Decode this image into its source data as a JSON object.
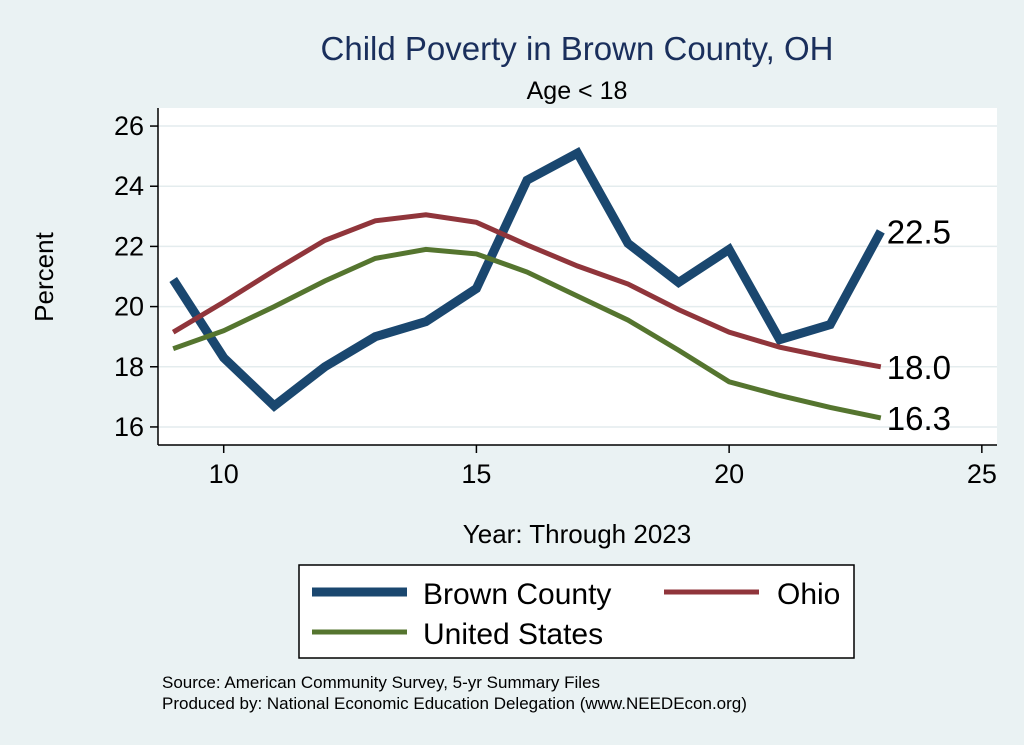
{
  "chart_data": {
    "type": "line",
    "title": "Child Poverty in Brown County, OH",
    "subtitle": "Age < 18",
    "xlabel": "Year: Through 2023",
    "ylabel": "Percent",
    "xlim": [
      8.7,
      25.3
    ],
    "ylim": [
      15.4,
      26.6
    ],
    "xticks": [
      10,
      15,
      20,
      25
    ],
    "yticks": [
      16,
      18,
      20,
      22,
      24,
      26
    ],
    "grid": true,
    "legend_position": "bottom",
    "series": [
      {
        "name": "Brown County",
        "color": "#1a476f",
        "width": 9,
        "x": [
          9,
          10,
          11,
          12,
          13,
          14,
          15,
          16,
          17,
          18,
          19,
          20,
          21,
          22,
          23
        ],
        "values": [
          20.9,
          18.3,
          16.7,
          18.0,
          19.0,
          19.5,
          20.6,
          24.2,
          25.1,
          22.1,
          20.8,
          21.9,
          18.9,
          19.4,
          22.5
        ],
        "end_label": "22.5"
      },
      {
        "name": "Ohio",
        "color": "#90353b",
        "width": 5,
        "x": [
          9,
          10,
          11,
          12,
          13,
          14,
          15,
          16,
          17,
          18,
          19,
          20,
          21,
          22,
          23
        ],
        "values": [
          19.15,
          20.15,
          21.2,
          22.2,
          22.85,
          23.05,
          22.8,
          22.05,
          21.35,
          20.75,
          19.9,
          19.15,
          18.65,
          18.3,
          18.0
        ],
        "end_label": "18.0"
      },
      {
        "name": "United States",
        "color": "#55752f",
        "width": 5,
        "x": [
          9,
          10,
          11,
          12,
          13,
          14,
          15,
          16,
          17,
          18,
          19,
          20,
          21,
          22,
          23
        ],
        "values": [
          18.6,
          19.2,
          20.0,
          20.85,
          21.6,
          21.9,
          21.75,
          21.15,
          20.35,
          19.55,
          18.55,
          17.5,
          17.05,
          16.65,
          16.3
        ],
        "end_label": "16.3"
      }
    ]
  },
  "notes": {
    "source": "Source: American Community Survey, 5-yr Summary Files",
    "produced": "Produced by: National Economic Education Delegation (www.NEEDEcon.org)"
  }
}
